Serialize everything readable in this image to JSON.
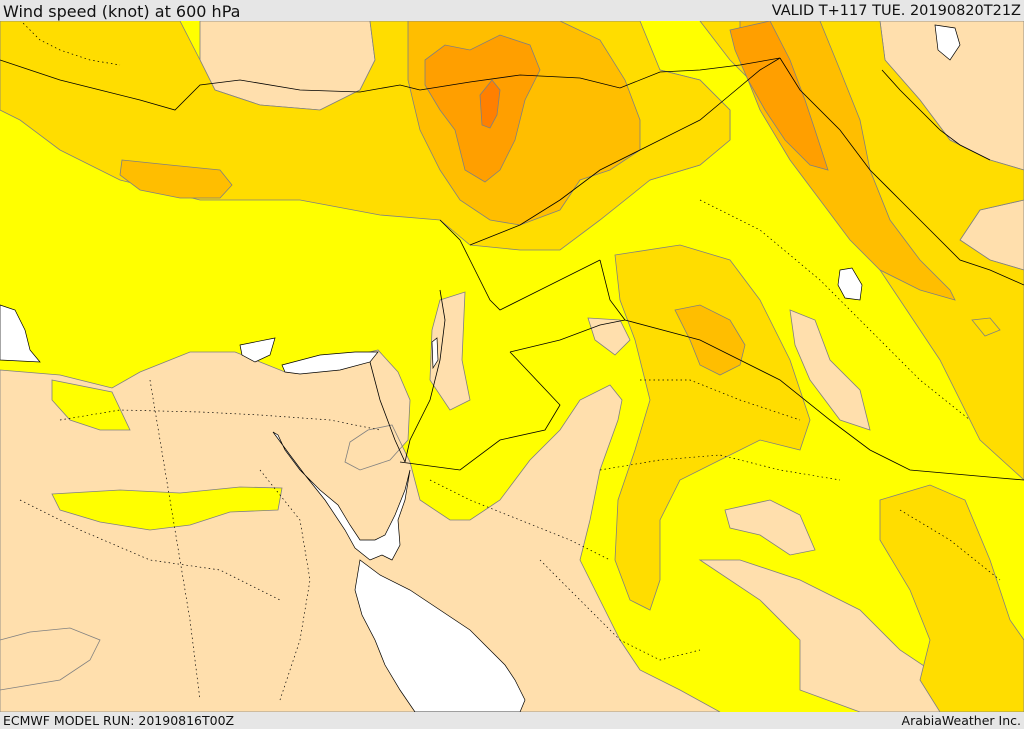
{
  "header": {
    "title": "Wind speed (knot) at 600 hPa",
    "valid": "VALID T+117 TUE. 20190820T21Z"
  },
  "footer": {
    "model_run": "ECMWF MODEL RUN: 20190816T00Z",
    "credit": "ArabiaWeather Inc."
  },
  "map": {
    "field": "wind-speed",
    "colors": {
      "lowest": "#ffdfad",
      "low": "#ffff00",
      "medium": "#ffdd00",
      "high": "#ffbe00",
      "higher": "#ff9f00",
      "highest": "#ff8000",
      "water": "#ffffff",
      "contour": "#808080",
      "border": "#000000"
    }
  }
}
